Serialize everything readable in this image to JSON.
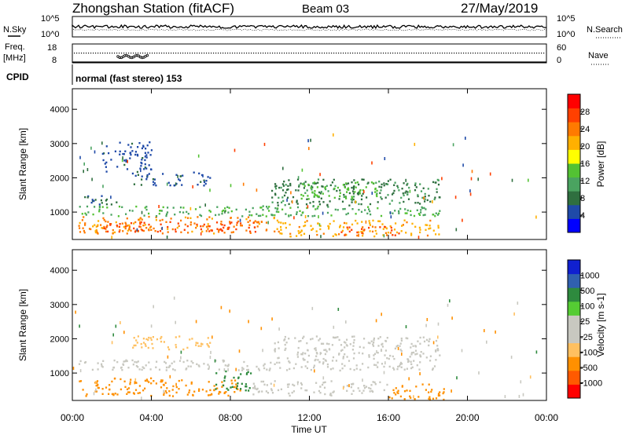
{
  "header": {
    "station": "Zhongshan Station (fitACF)",
    "beam": "Beam 03",
    "date": "27/May/2019"
  },
  "sky_panel": {
    "left_label": "N.Sky",
    "right_label": "N.Search",
    "left_ticks": [
      "10^5",
      "10^0"
    ],
    "right_ticks": [
      "10^5",
      "10^0"
    ]
  },
  "freq_panel": {
    "left_label_1": "Freq.",
    "left_label_2": "[MHz]",
    "right_label": "Nave",
    "left_ticks": [
      "18",
      "8"
    ],
    "right_ticks": [
      "60",
      "0"
    ]
  },
  "cpid": {
    "label": "CPID",
    "value": "normal (fast stereo) 153"
  },
  "colors": {
    "power_scale": [
      "#0000ff",
      "#1f4aa8",
      "#2f6f3f",
      "#4aa360",
      "#53c233",
      "#ffff00",
      "#ffb000",
      "#ff7a00",
      "#ff4000",
      "#ff0000"
    ],
    "velocity_scale": [
      "#ff0000",
      "#ff5a00",
      "#ff9000",
      "#ffc060",
      "#c8c8c0",
      "#c8c8c0",
      "#55cc33",
      "#2e8a3e",
      "#3060b0",
      "#1020d0"
    ]
  },
  "chart_data": [
    {
      "type": "heatmap",
      "name": "power",
      "ylabel": "Slant Range [km]",
      "yticks": [
        "1000",
        "2000",
        "3000",
        "4000"
      ],
      "ylim": [
        200,
        4600
      ],
      "xlim": [
        0,
        24
      ],
      "colorbar_label": "Power [dB]",
      "colorbar_ticks": [
        "4",
        "8",
        "12",
        "16",
        "20",
        "24",
        "28"
      ],
      "colorbar_range": [
        0,
        32
      ],
      "regions": [
        {
          "t0": 0.3,
          "t1": 10.5,
          "r0": 400,
          "r1": 900,
          "level": 24
        },
        {
          "t0": 1.5,
          "t1": 9.5,
          "r0": 450,
          "r1": 750,
          "level": 28
        },
        {
          "t0": 10.5,
          "t1": 18.6,
          "r0": 300,
          "r1": 800,
          "level": 22
        },
        {
          "t0": 13.5,
          "t1": 16.5,
          "r0": 350,
          "r1": 600,
          "level": 28
        },
        {
          "t0": 0.3,
          "t1": 18.6,
          "r0": 900,
          "r1": 1200,
          "level": 12
        },
        {
          "t0": 10.0,
          "t1": 18.6,
          "r0": 1200,
          "r1": 2000,
          "level": 8
        },
        {
          "t0": 11.5,
          "t1": 15.5,
          "r0": 1400,
          "r1": 1900,
          "level": 14
        },
        {
          "t0": 0.5,
          "t1": 2.2,
          "r0": 1200,
          "r1": 1500,
          "level": 6
        },
        {
          "t0": 3.0,
          "t1": 7.0,
          "r0": 1800,
          "r1": 2200,
          "level": 5
        },
        {
          "t0": 1.5,
          "t1": 4.0,
          "r0": 2200,
          "r1": 3100,
          "level": 4
        }
      ]
    },
    {
      "type": "heatmap",
      "name": "velocity",
      "ylabel": "Slant Range [km]",
      "yticks": [
        "1000",
        "2000",
        "3000",
        "4000"
      ],
      "ylim": [
        200,
        4600
      ],
      "xlim": [
        0,
        24
      ],
      "xlabel": "Time UT",
      "xticks": [
        "00:00",
        "04:00",
        "08:00",
        "12:00",
        "16:00",
        "20:00",
        "00:00"
      ],
      "colorbar_label": "Velocity [m s-1]",
      "colorbar_ticks": [
        "-1000",
        "-500",
        "-100",
        "-25",
        "25",
        "100",
        "500",
        "1000"
      ],
      "regions": [
        {
          "t0": 0.3,
          "t1": 4.5,
          "r0": 350,
          "r1": 900,
          "level": -250
        },
        {
          "t0": 4.5,
          "t1": 8.5,
          "r0": 350,
          "r1": 850,
          "level": -150
        },
        {
          "t0": 7.2,
          "t1": 9.0,
          "r0": 500,
          "r1": 1100,
          "level": 800
        },
        {
          "t0": 9.0,
          "t1": 13.5,
          "r0": 350,
          "r1": 800,
          "level": 80
        },
        {
          "t0": 13.5,
          "t1": 16.0,
          "r0": 400,
          "r1": 800,
          "level": 60
        },
        {
          "t0": 16.0,
          "t1": 18.8,
          "r0": 250,
          "r1": 700,
          "level": -150
        },
        {
          "t0": 0.3,
          "t1": 18.6,
          "r0": 1100,
          "r1": 1400,
          "level": 0
        },
        {
          "t0": 10.0,
          "t1": 18.6,
          "r0": 1400,
          "r1": 2100,
          "level": 0
        },
        {
          "t0": 3.0,
          "t1": 7.0,
          "r0": 1700,
          "r1": 2100,
          "level": -60
        }
      ]
    }
  ]
}
